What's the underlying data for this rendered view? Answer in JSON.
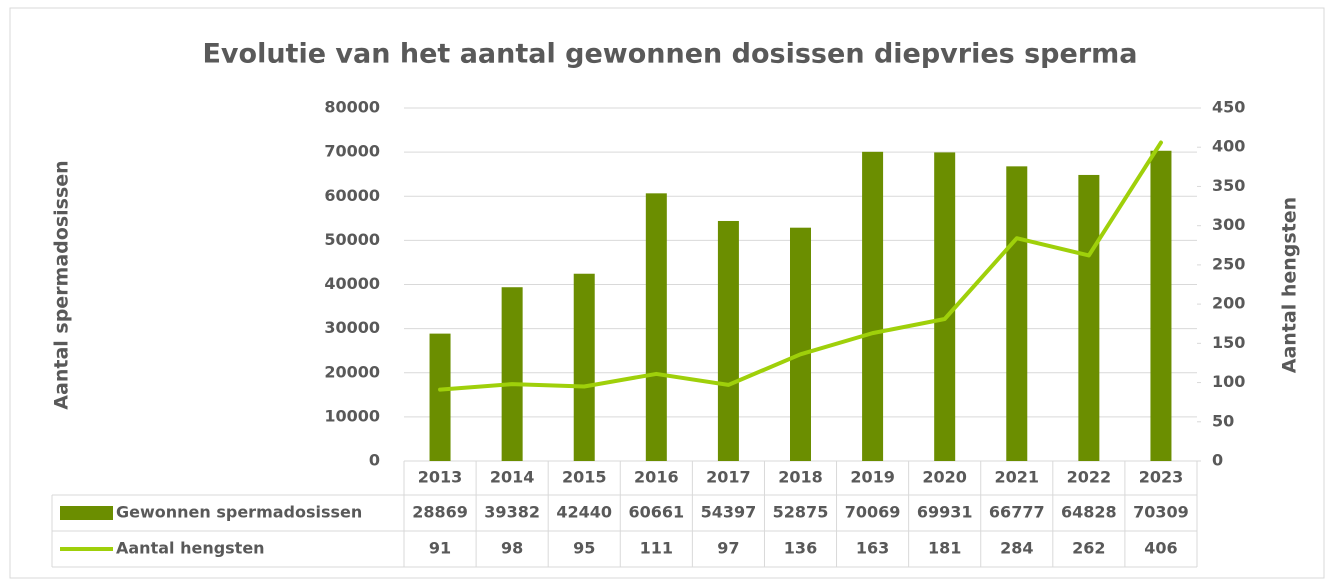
{
  "chart_data": {
    "type": "bar",
    "title": "Evolutie van het aantal gewonnen dosissen diepvries sperma",
    "y_label": "Aantal spermadosissen",
    "y2_label": "Aantal hengsten",
    "categories": [
      "2013",
      "2014",
      "2015",
      "2016",
      "2017",
      "2018",
      "2019",
      "2020",
      "2021",
      "2022",
      "2023"
    ],
    "series": [
      {
        "name": "Gewonnen spermadosissen",
        "type": "bar",
        "color": "#6b8e00",
        "values": [
          28869,
          39382,
          42440,
          60661,
          54397,
          52875,
          70069,
          69931,
          66777,
          64828,
          70309
        ]
      },
      {
        "name": "Aantal hengsten",
        "type": "line",
        "axis": "y2",
        "color": "#9fd00a",
        "values": [
          91,
          98,
          95,
          111,
          97,
          136,
          163,
          181,
          284,
          262,
          406
        ]
      }
    ],
    "ylim": [
      0,
      80000
    ],
    "yticks": [
      0,
      10000,
      20000,
      30000,
      40000,
      50000,
      60000,
      70000,
      80000
    ],
    "y2lim": [
      0,
      450
    ],
    "y2ticks": [
      0,
      50,
      100,
      150,
      200,
      250,
      300,
      350,
      400,
      450
    ],
    "grid": true,
    "data_table": true
  }
}
